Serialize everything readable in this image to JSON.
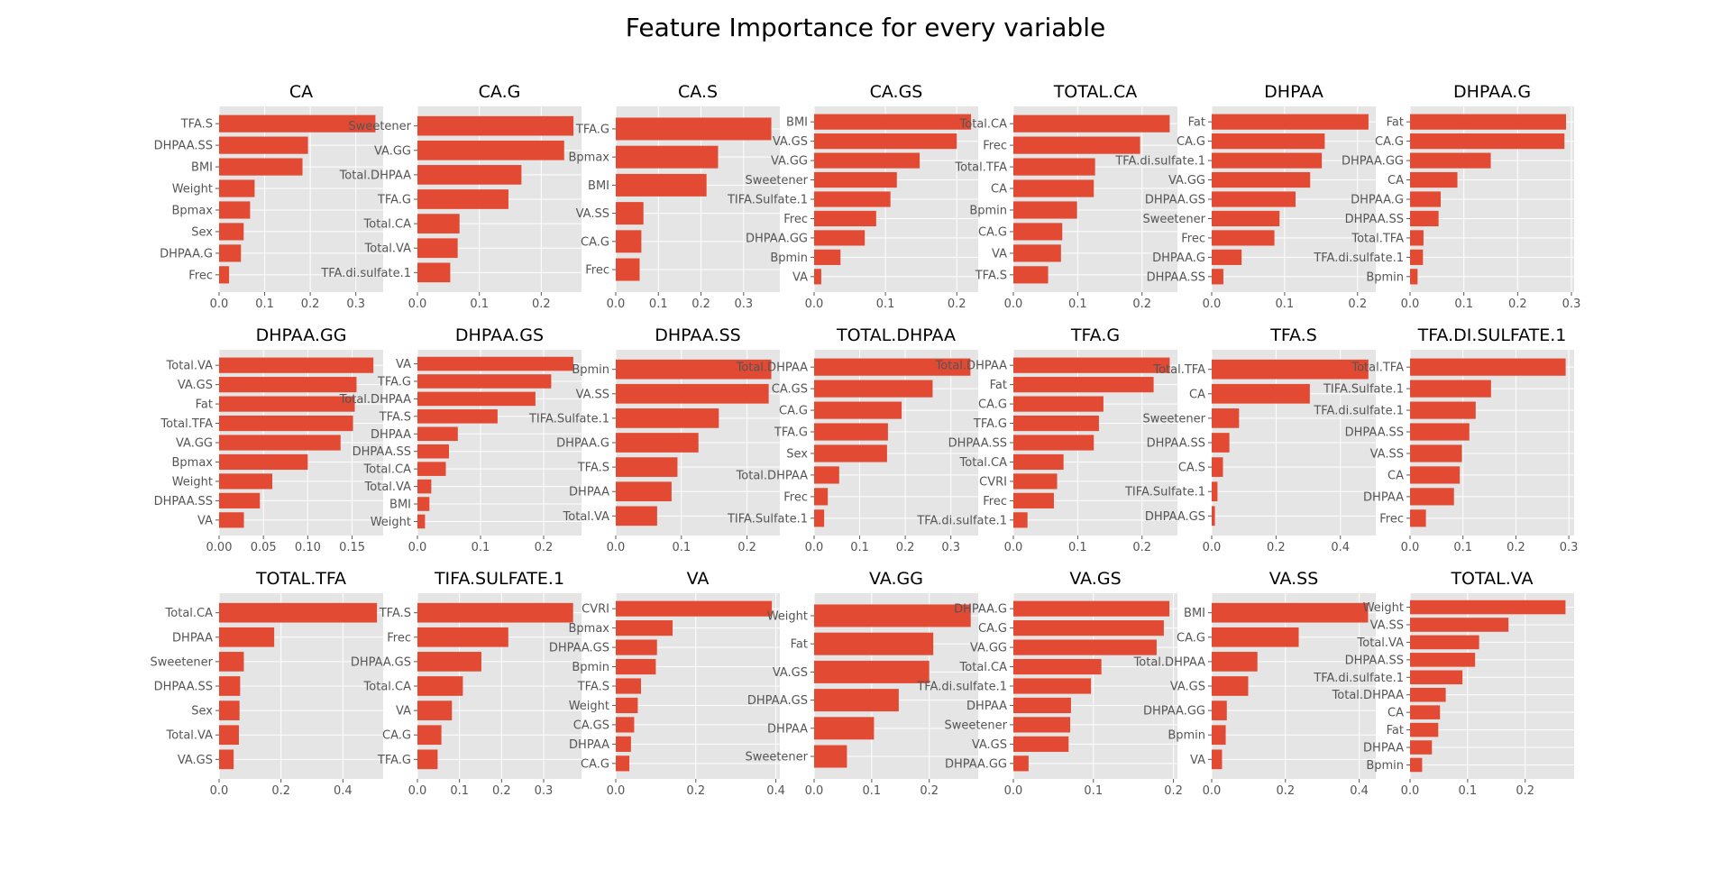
{
  "figure": {
    "title": "Feature Importance for every variable",
    "style": "ggplot",
    "bar_color": "#E24A33",
    "panel_background": "#E5E5E5",
    "grid_color": "#FFFFFF"
  },
  "chart_data": [
    {
      "type": "bar",
      "orientation": "horizontal",
      "title": "CA",
      "categories": [
        "TFA.S",
        "DHPAA.SS",
        "BMI",
        "Weight",
        "Bpmax",
        "Sex",
        "DHPAA.G",
        "Frec"
      ],
      "values": [
        0.343,
        0.195,
        0.183,
        0.078,
        0.068,
        0.054,
        0.048,
        0.022
      ],
      "xlim": [
        0,
        0.36
      ],
      "xticks": [
        0.0,
        0.1,
        0.2,
        0.3
      ],
      "xtick_labels": [
        "0.0",
        "0.1",
        "0.2",
        "0.3"
      ]
    },
    {
      "type": "bar",
      "orientation": "horizontal",
      "title": "CA.G",
      "categories": [
        "Sweetener",
        "VA.GG",
        "Total.DHPAA",
        "TFA.G",
        "Total.CA",
        "Total.VA",
        "TFA.di.sulfate.1"
      ],
      "values": [
        0.252,
        0.237,
        0.168,
        0.147,
        0.068,
        0.065,
        0.053
      ],
      "xlim": [
        0,
        0.265
      ],
      "xticks": [
        0.0,
        0.1,
        0.2
      ],
      "xtick_labels": [
        "0.0",
        "0.1",
        "0.2"
      ]
    },
    {
      "type": "bar",
      "orientation": "horizontal",
      "title": "CA.S",
      "categories": [
        "TFA.G",
        "Bpmax",
        "BMI",
        "VA.SS",
        "CA.G",
        "Frec"
      ],
      "values": [
        0.365,
        0.24,
        0.213,
        0.065,
        0.06,
        0.056
      ],
      "xlim": [
        0,
        0.385
      ],
      "xticks": [
        0.0,
        0.1,
        0.2,
        0.3
      ],
      "xtick_labels": [
        "0.0",
        "0.1",
        "0.2",
        "0.3"
      ]
    },
    {
      "type": "bar",
      "orientation": "horizontal",
      "title": "CA.GS",
      "categories": [
        "BMI",
        "VA.GS",
        "VA.GG",
        "Sweetener",
        "TIFA.Sulfate.1",
        "Frec",
        "DHPAA.GG",
        "Bpmin",
        "VA"
      ],
      "values": [
        0.22,
        0.2,
        0.148,
        0.116,
        0.107,
        0.087,
        0.071,
        0.037,
        0.01
      ],
      "xlim": [
        0,
        0.23
      ],
      "xticks": [
        0.0,
        0.1,
        0.2
      ],
      "xtick_labels": [
        "0.0",
        "0.1",
        "0.2"
      ]
    },
    {
      "type": "bar",
      "orientation": "horizontal",
      "title": "TOTAL.CA",
      "categories": [
        "Total.CA",
        "Frec",
        "Total.TFA",
        "CA",
        "Bpmin",
        "CA.G",
        "VA",
        "TFA.S"
      ],
      "values": [
        0.243,
        0.197,
        0.127,
        0.125,
        0.099,
        0.076,
        0.074,
        0.054
      ],
      "xlim": [
        0,
        0.255
      ],
      "xticks": [
        0.0,
        0.1,
        0.2
      ],
      "xtick_labels": [
        "0.0",
        "0.1",
        "0.2"
      ]
    },
    {
      "type": "bar",
      "orientation": "horizontal",
      "title": "DHPAA",
      "categories": [
        "Fat",
        "CA.G",
        "TFA.di.sulfate.1",
        "VA.GG",
        "DHPAA.GS",
        "Sweetener",
        "Frec",
        "DHPAA.G",
        "DHPAA.SS"
      ],
      "values": [
        0.215,
        0.155,
        0.151,
        0.135,
        0.115,
        0.093,
        0.086,
        0.041,
        0.016
      ],
      "xlim": [
        0,
        0.225
      ],
      "xticks": [
        0.0,
        0.1,
        0.2
      ],
      "xtick_labels": [
        "0.0",
        "0.1",
        "0.2"
      ]
    },
    {
      "type": "bar",
      "orientation": "horizontal",
      "title": "DHPAA.G",
      "categories": [
        "Fat",
        "CA.G",
        "DHPAA.GG",
        "CA",
        "DHPAA.G",
        "DHPAA.SS",
        "Total.TFA",
        "TFA.di.sulfate.1",
        "Bpmin"
      ],
      "values": [
        0.29,
        0.287,
        0.15,
        0.088,
        0.057,
        0.053,
        0.025,
        0.024,
        0.014
      ],
      "xlim": [
        0,
        0.305
      ],
      "xticks": [
        0.0,
        0.1,
        0.2,
        0.3
      ],
      "xtick_labels": [
        "0.0",
        "0.1",
        "0.2",
        "0.3"
      ]
    },
    {
      "type": "bar",
      "orientation": "horizontal",
      "title": "DHPAA.GG",
      "categories": [
        "Total.VA",
        "VA.GS",
        "Fat",
        "Total.TFA",
        "VA.GG",
        "Bpmax",
        "Weight",
        "DHPAA.SS",
        "VA"
      ],
      "values": [
        0.174,
        0.155,
        0.153,
        0.151,
        0.137,
        0.1,
        0.06,
        0.046,
        0.028
      ],
      "xlim": [
        0,
        0.185
      ],
      "xticks": [
        0.0,
        0.05,
        0.1,
        0.15
      ],
      "xtick_labels": [
        "0.00",
        "0.05",
        "0.10",
        "0.15"
      ]
    },
    {
      "type": "bar",
      "orientation": "horizontal",
      "title": "DHPAA.GS",
      "categories": [
        "VA",
        "TFA.G",
        "Total.DHPAA",
        "TFA.S",
        "DHPAA",
        "DHPAA.SS",
        "Total.CA",
        "Total.VA",
        "BMI",
        "Weight"
      ],
      "values": [
        0.247,
        0.212,
        0.187,
        0.127,
        0.064,
        0.05,
        0.045,
        0.022,
        0.019,
        0.012
      ],
      "xlim": [
        0,
        0.26
      ],
      "xticks": [
        0.0,
        0.1,
        0.2
      ],
      "xtick_labels": [
        "0.0",
        "0.1",
        "0.2"
      ]
    },
    {
      "type": "bar",
      "orientation": "horizontal",
      "title": "DHPAA.SS",
      "categories": [
        "Bpmin",
        "VA.SS",
        "TIFA.Sulfate.1",
        "DHPAA.G",
        "TFA.S",
        "DHPAA",
        "Total.VA"
      ],
      "values": [
        0.237,
        0.233,
        0.157,
        0.126,
        0.094,
        0.085,
        0.063
      ],
      "xlim": [
        0,
        0.25
      ],
      "xticks": [
        0.0,
        0.1,
        0.2
      ],
      "xtick_labels": [
        "0.0",
        "0.1",
        "0.2"
      ]
    },
    {
      "type": "bar",
      "orientation": "horizontal",
      "title": "TOTAL.DHPAA",
      "categories": [
        "Total.DHPAA",
        "CA.GS",
        "CA.G",
        "TFA.G",
        "Sex",
        "Total.DHPAA",
        "Frec",
        "TIFA.Sulfate.1"
      ],
      "values": [
        0.343,
        0.26,
        0.192,
        0.162,
        0.16,
        0.055,
        0.03,
        0.022
      ],
      "xlim": [
        0,
        0.36
      ],
      "xticks": [
        0.0,
        0.1,
        0.2,
        0.3
      ],
      "xtick_labels": [
        "0.0",
        "0.1",
        "0.2",
        "0.3"
      ]
    },
    {
      "type": "bar",
      "orientation": "horizontal",
      "title": "TFA.G",
      "categories": [
        "Total.DHPAA",
        "Fat",
        "CA.G",
        "TFA.G",
        "DHPAA.SS",
        "Total.CA",
        "CVRI",
        "Frec",
        "TFA.di.sulfate.1"
      ],
      "values": [
        0.243,
        0.218,
        0.14,
        0.133,
        0.125,
        0.078,
        0.068,
        0.063,
        0.022
      ],
      "xlim": [
        0,
        0.255
      ],
      "xticks": [
        0.0,
        0.1,
        0.2
      ],
      "xtick_labels": [
        "0.0",
        "0.1",
        "0.2"
      ]
    },
    {
      "type": "bar",
      "orientation": "horizontal",
      "title": "TFA.S",
      "categories": [
        "Total.TFA",
        "CA",
        "Sweetener",
        "DHPAA.SS",
        "CA.S",
        "TIFA.Sulfate.1",
        "DHPAA.GS"
      ],
      "values": [
        0.487,
        0.305,
        0.085,
        0.055,
        0.035,
        0.018,
        0.01
      ],
      "xlim": [
        0,
        0.51
      ],
      "xticks": [
        0.0,
        0.2,
        0.4
      ],
      "xtick_labels": [
        "0.0",
        "0.2",
        "0.4"
      ]
    },
    {
      "type": "bar",
      "orientation": "horizontal",
      "title": "TFA.DI.SULFATE.1",
      "categories": [
        "Total.TFA",
        "TIFA.Sulfate.1",
        "TFA.di.sulfate.1",
        "DHPAA.SS",
        "VA.SS",
        "CA",
        "DHPAA",
        "Frec"
      ],
      "values": [
        0.294,
        0.153,
        0.124,
        0.112,
        0.098,
        0.094,
        0.083,
        0.03
      ],
      "xlim": [
        0,
        0.31
      ],
      "xticks": [
        0.0,
        0.1,
        0.2,
        0.3
      ],
      "xtick_labels": [
        "0.0",
        "0.1",
        "0.2",
        "0.3"
      ]
    },
    {
      "type": "bar",
      "orientation": "horizontal",
      "title": "TOTAL.TFA",
      "categories": [
        "Total.CA",
        "DHPAA",
        "Sweetener",
        "DHPAA.SS",
        "Sex",
        "Total.VA",
        "VA.GS"
      ],
      "values": [
        0.51,
        0.178,
        0.08,
        0.068,
        0.066,
        0.064,
        0.047
      ],
      "xlim": [
        0,
        0.53
      ],
      "xticks": [
        0.0,
        0.2,
        0.4
      ],
      "xtick_labels": [
        "0.0",
        "0.2",
        "0.4"
      ]
    },
    {
      "type": "bar",
      "orientation": "horizontal",
      "title": "TIFA.SULFATE.1",
      "categories": [
        "TFA.S",
        "Frec",
        "DHPAA.GS",
        "Total.CA",
        "VA",
        "CA.G",
        "TFA.G"
      ],
      "values": [
        0.37,
        0.216,
        0.152,
        0.108,
        0.082,
        0.057,
        0.048
      ],
      "xlim": [
        0,
        0.39
      ],
      "xticks": [
        0.0,
        0.1,
        0.2,
        0.3
      ],
      "xtick_labels": [
        "0.0",
        "0.1",
        "0.2",
        "0.3"
      ]
    },
    {
      "type": "bar",
      "orientation": "horizontal",
      "title": "VA",
      "categories": [
        "CVRI",
        "Bpmax",
        "DHPAA.GS",
        "Bpmin",
        "TFA.S",
        "Weight",
        "CA.GS",
        "DHPAA",
        "CA.G"
      ],
      "values": [
        0.39,
        0.142,
        0.103,
        0.1,
        0.063,
        0.055,
        0.046,
        0.038,
        0.034
      ],
      "xlim": [
        0,
        0.41
      ],
      "xticks": [
        0.0,
        0.2,
        0.4
      ],
      "xtick_labels": [
        "0.0",
        "0.2",
        "0.4"
      ]
    },
    {
      "type": "bar",
      "orientation": "horizontal",
      "title": "VA.GG",
      "categories": [
        "Weight",
        "Fat",
        "VA.GS",
        "DHPAA.GS",
        "DHPAA",
        "Sweetener"
      ],
      "values": [
        0.272,
        0.207,
        0.2,
        0.147,
        0.104,
        0.057
      ],
      "xlim": [
        0,
        0.285
      ],
      "xticks": [
        0.0,
        0.1,
        0.2
      ],
      "xtick_labels": [
        "0.0",
        "0.1",
        "0.2"
      ]
    },
    {
      "type": "bar",
      "orientation": "horizontal",
      "title": "VA.GS",
      "categories": [
        "DHPAA.G",
        "CA.G",
        "VA.GG",
        "Total.CA",
        "TFA.di.sulfate.1",
        "DHPAA",
        "Sweetener",
        "VA.GS",
        "DHPAA.GG"
      ],
      "values": [
        0.195,
        0.188,
        0.179,
        0.11,
        0.097,
        0.072,
        0.071,
        0.069,
        0.019
      ],
      "xlim": [
        0,
        0.205
      ],
      "xticks": [
        0.0,
        0.1,
        0.2
      ],
      "xtick_labels": [
        "0.0",
        "0.1",
        "0.2"
      ]
    },
    {
      "type": "bar",
      "orientation": "horizontal",
      "title": "VA.SS",
      "categories": [
        "BMI",
        "CA.G",
        "Total.DHPAA",
        "VA.GS",
        "DHPAA.GG",
        "Bpmin",
        "VA"
      ],
      "values": [
        0.424,
        0.236,
        0.124,
        0.099,
        0.041,
        0.038,
        0.028
      ],
      "xlim": [
        0,
        0.445
      ],
      "xticks": [
        0.0,
        0.2,
        0.4
      ],
      "xtick_labels": [
        "0.0",
        "0.2",
        "0.4"
      ]
    },
    {
      "type": "bar",
      "orientation": "horizontal",
      "title": "TOTAL.VA",
      "categories": [
        "Weight",
        "VA.SS",
        "Total.VA",
        "DHPAA.SS",
        "TFA.di.sulfate.1",
        "Total.DHPAA",
        "CA",
        "Fat",
        "DHPAA",
        "Bpmin"
      ],
      "values": [
        0.27,
        0.171,
        0.12,
        0.113,
        0.091,
        0.062,
        0.052,
        0.049,
        0.038,
        0.021
      ],
      "xlim": [
        0,
        0.285
      ],
      "xticks": [
        0.0,
        0.1,
        0.2
      ],
      "xtick_labels": [
        "0.0",
        "0.1",
        "0.2"
      ]
    }
  ]
}
